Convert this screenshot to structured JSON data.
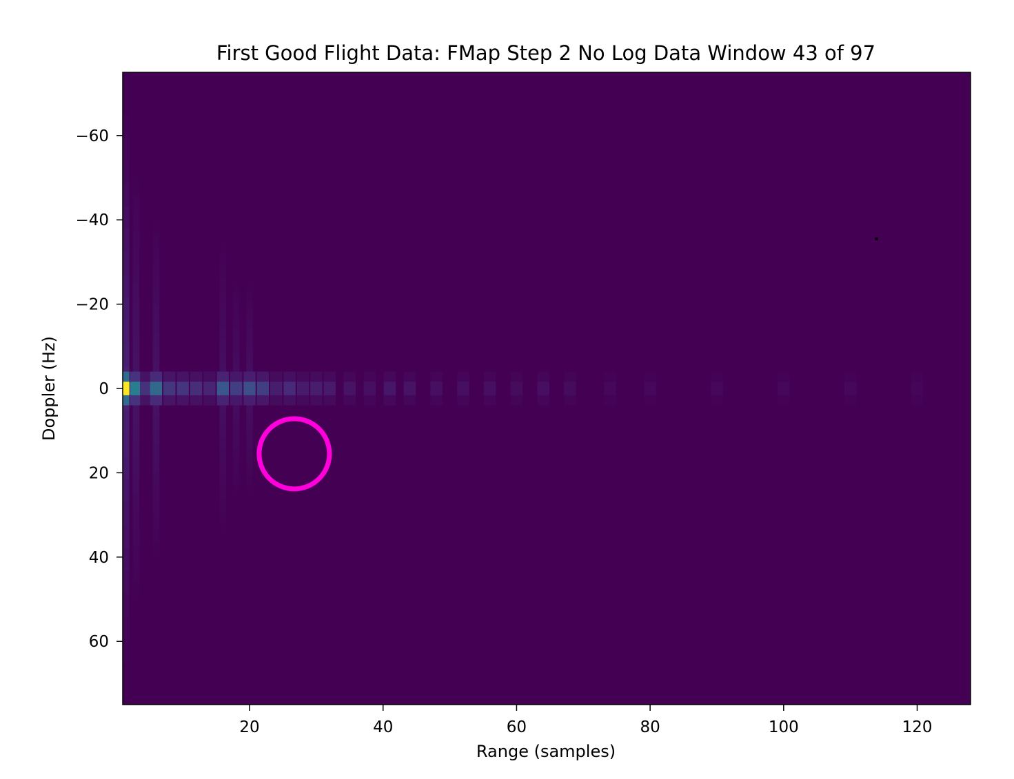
{
  "chart_data": {
    "type": "heatmap",
    "title": "First Good Flight Data: FMap Step 2 No Log Data Window 43 of 97",
    "xlabel": "Range (samples)",
    "ylabel": "Doppler (Hz)",
    "xlim": [
      1,
      128
    ],
    "ylim": [
      75,
      -75
    ],
    "xticks": [
      20,
      40,
      60,
      80,
      100,
      120
    ],
    "xtick_labels": [
      "20",
      "40",
      "60",
      "80",
      "100",
      "120"
    ],
    "yticks": [
      -60,
      -40,
      -20,
      0,
      20,
      40,
      60
    ],
    "ytick_labels": [
      "−60",
      "−40",
      "−20",
      "0",
      "20",
      "40",
      "60"
    ],
    "colormap": "viridis",
    "background_color": "#440154",
    "grid": false,
    "legend": "none",
    "peak": {
      "range": 1.5,
      "doppler": 0,
      "intensity": 1.0
    },
    "zero_doppler_ridge": [
      {
        "range": 1.5,
        "intensity": 1.0
      },
      {
        "range": 3,
        "intensity": 0.42
      },
      {
        "range": 4.5,
        "intensity": 0.14
      },
      {
        "range": 6,
        "intensity": 0.34
      },
      {
        "range": 8,
        "intensity": 0.16
      },
      {
        "range": 10,
        "intensity": 0.15
      },
      {
        "range": 12,
        "intensity": 0.13
      },
      {
        "range": 14,
        "intensity": 0.1
      },
      {
        "range": 16,
        "intensity": 0.27
      },
      {
        "range": 18,
        "intensity": 0.18
      },
      {
        "range": 20,
        "intensity": 0.24
      },
      {
        "range": 22,
        "intensity": 0.18
      },
      {
        "range": 24,
        "intensity": 0.08
      },
      {
        "range": 26,
        "intensity": 0.12
      },
      {
        "range": 28,
        "intensity": 0.07
      },
      {
        "range": 30,
        "intensity": 0.08
      },
      {
        "range": 32,
        "intensity": 0.07
      },
      {
        "range": 35,
        "intensity": 0.05
      },
      {
        "range": 38,
        "intensity": 0.04
      },
      {
        "range": 41,
        "intensity": 0.06
      },
      {
        "range": 44,
        "intensity": 0.05
      },
      {
        "range": 48,
        "intensity": 0.04
      },
      {
        "range": 52,
        "intensity": 0.04
      },
      {
        "range": 56,
        "intensity": 0.04
      },
      {
        "range": 60,
        "intensity": 0.03
      },
      {
        "range": 64,
        "intensity": 0.04
      },
      {
        "range": 68,
        "intensity": 0.03
      },
      {
        "range": 74,
        "intensity": 0.02
      },
      {
        "range": 80,
        "intensity": 0.02
      },
      {
        "range": 90,
        "intensity": 0.02
      },
      {
        "range": 100,
        "intensity": 0.02
      },
      {
        "range": 110,
        "intensity": 0.02
      },
      {
        "range": 120,
        "intensity": 0.015
      }
    ],
    "vertical_streaks": [
      {
        "range": 1.5,
        "intensity": 0.09,
        "extent": 65
      },
      {
        "range": 3,
        "intensity": 0.05,
        "extent": 50
      },
      {
        "range": 6,
        "intensity": 0.05,
        "extent": 40
      },
      {
        "range": 16,
        "intensity": 0.04,
        "extent": 35
      },
      {
        "range": 18,
        "intensity": 0.035,
        "extent": 25
      },
      {
        "range": 20,
        "intensity": 0.04,
        "extent": 25
      }
    ],
    "annotation": {
      "shape": "circle",
      "color": "#ff00dd",
      "center": {
        "range": 26.7,
        "doppler": 15.5
      }
    },
    "marker": {
      "range": 113.9,
      "doppler": -35.5,
      "color": "#000000"
    }
  }
}
